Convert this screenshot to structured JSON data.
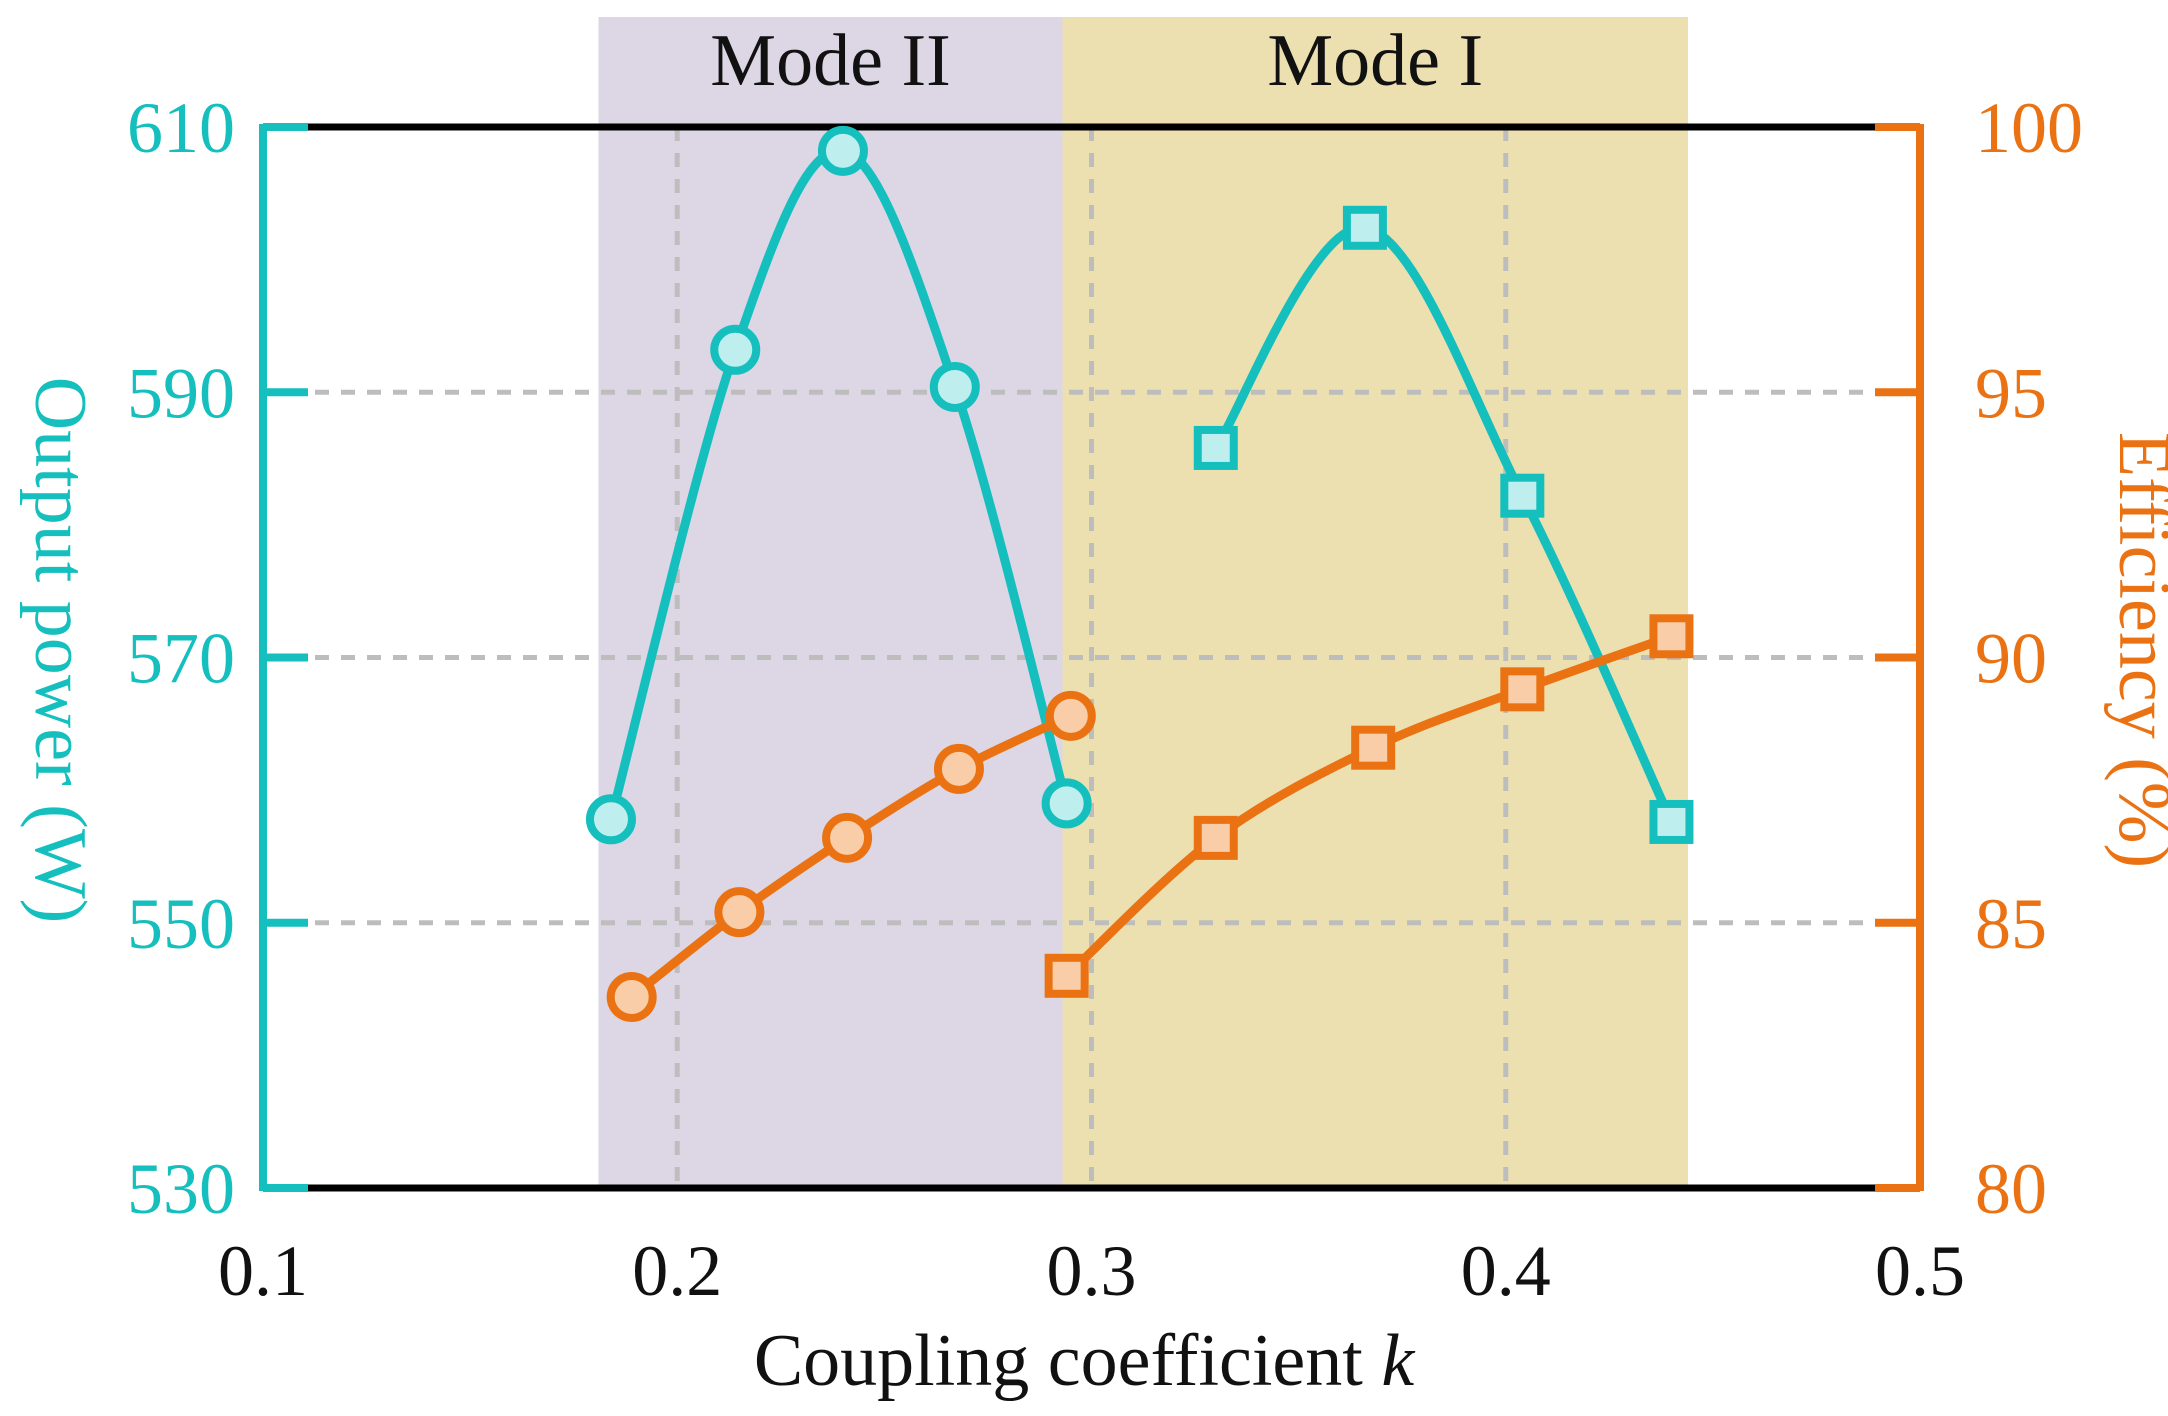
{
  "chart_data": {
    "type": "line",
    "xlabel": "Coupling coefficient",
    "xlabel_var": "k",
    "ylabel_left": "Output power (W)",
    "ylabel_right": "Efficiency (%)",
    "xlim": [
      0.1,
      0.5
    ],
    "ylim_left": [
      530,
      610
    ],
    "ylim_right": [
      80,
      100
    ],
    "x_ticks": [
      0.1,
      0.2,
      0.3,
      0.4,
      0.5
    ],
    "x_tick_labels": [
      "0.1",
      "0.2",
      "0.3",
      "0.4",
      "0.5"
    ],
    "y_left_ticks": [
      530,
      550,
      570,
      590,
      610
    ],
    "y_left_tick_labels": [
      "530",
      "550",
      "570",
      "590",
      "610"
    ],
    "y_right_ticks": [
      80,
      85,
      90,
      95,
      100
    ],
    "y_right_tick_labels": [
      "80",
      "85",
      "90",
      "95",
      "100"
    ],
    "grid": true,
    "regions": [
      {
        "label": "Mode II",
        "x_start": 0.181,
        "x_end": 0.293,
        "color": "#dcd6e5"
      },
      {
        "label": "Mode I",
        "x_start": 0.293,
        "x_end": 0.444,
        "color": "#ece0b0"
      }
    ],
    "colors": {
      "power": "#14bfbd",
      "power_fill": "#bfeeee",
      "efficiency": "#ea7212",
      "efficiency_fill": "#f9cda8"
    },
    "series": [
      {
        "axis": "left",
        "marker": "circle",
        "color": "#14bfbd",
        "x": [
          0.184,
          0.214,
          0.24,
          0.267,
          0.294
        ],
        "y": [
          557.8,
          593.2,
          608.2,
          590.4,
          559.0
        ]
      },
      {
        "axis": "left",
        "marker": "square",
        "color": "#14bfbd",
        "x": [
          0.33,
          0.366,
          0.404,
          0.44
        ],
        "y": [
          585.8,
          602.4,
          582.2,
          557.6
        ]
      },
      {
        "axis": "right",
        "marker": "circle",
        "color": "#ea7212",
        "x": [
          0.189,
          0.215,
          0.241,
          0.268,
          0.295
        ],
        "y": [
          83.6,
          85.2,
          86.6,
          87.9,
          88.9
        ]
      },
      {
        "axis": "right",
        "marker": "square",
        "color": "#ea7212",
        "x": [
          0.294,
          0.33,
          0.368,
          0.404,
          0.44
        ],
        "y": [
          84.0,
          86.6,
          88.3,
          89.4,
          90.4
        ]
      }
    ]
  }
}
